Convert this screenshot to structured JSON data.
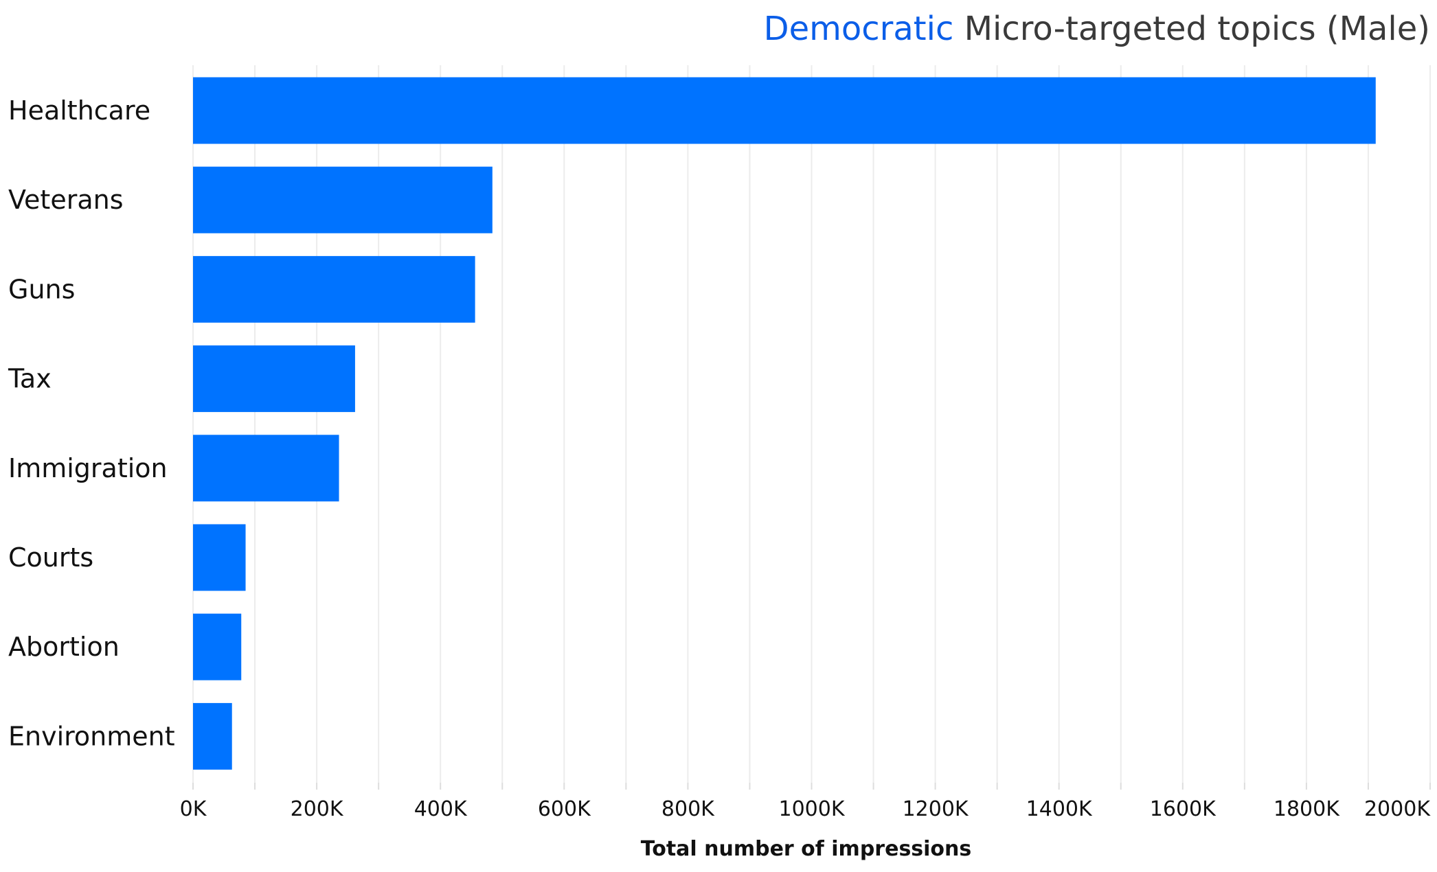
{
  "chart_data": {
    "type": "bar",
    "orientation": "horizontal",
    "title_accent": "Democratic",
    "title_rest": " Micro-targeted topics (Male)",
    "categories": [
      "Healthcare",
      "Veterans",
      "Guns",
      "Tax",
      "Immigration",
      "Courts",
      "Abortion",
      "Environment"
    ],
    "values": [
      1912,
      484,
      456,
      262,
      236,
      85,
      78,
      63
    ],
    "value_unit": "K",
    "xlabel": "Total number of impressions",
    "ylabel": "",
    "xlim": [
      0,
      2000
    ],
    "xticks": [
      "0K",
      "200K",
      "400K",
      "600K",
      "800K",
      "1000K",
      "1200K",
      "1400K",
      "1600K",
      "1800K",
      "2000K"
    ],
    "grid": true,
    "bar_color": "#0073ff",
    "accent_color": "#0b5ee8",
    "grid_color": "#ececec"
  }
}
